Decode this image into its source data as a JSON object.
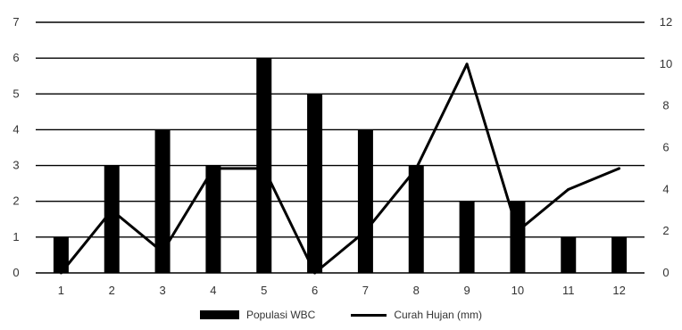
{
  "chart_data": {
    "type": "bar",
    "categories": [
      "1",
      "2",
      "3",
      "4",
      "5",
      "6",
      "7",
      "8",
      "9",
      "10",
      "11",
      "12"
    ],
    "series": [
      {
        "name": "Populasi WBC",
        "type": "bar",
        "axis": "left",
        "values": [
          1,
          3,
          4,
          3,
          6,
          5,
          4,
          3,
          2,
          2,
          1,
          1
        ]
      },
      {
        "name": "Curah Hujan (mm)",
        "type": "line",
        "axis": "right",
        "values": [
          0,
          3,
          1,
          5,
          5,
          0,
          2,
          5,
          10,
          2,
          4,
          5
        ]
      }
    ],
    "left_axis": {
      "range": [
        0,
        7
      ],
      "ticks": [
        "0",
        "1",
        "2",
        "3",
        "4",
        "5",
        "6",
        "7"
      ]
    },
    "right_axis": {
      "range": [
        0,
        12
      ],
      "ticks": [
        "0",
        "2",
        "4",
        "6",
        "8",
        "10",
        "12"
      ]
    },
    "grid": true,
    "legend_position": "bottom",
    "colors": {
      "bars": "#000000",
      "line": "#000000",
      "grid": "#000000"
    }
  },
  "legend": {
    "bar_label": "Populasi WBC",
    "line_label": "Curah Hujan (mm)"
  }
}
